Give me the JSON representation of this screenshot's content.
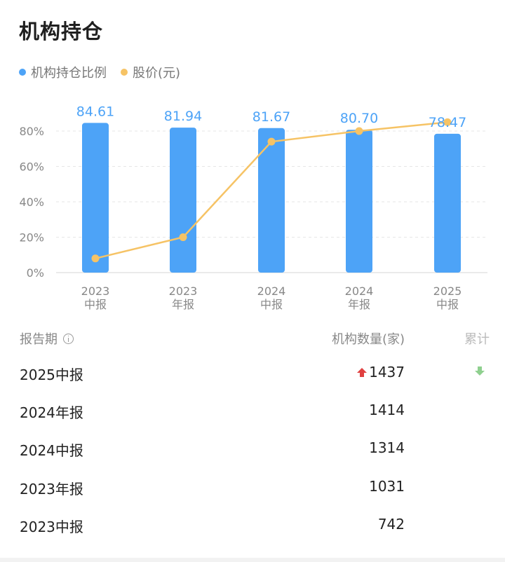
{
  "title": "机构持仓",
  "legend": [
    {
      "label": "机构持仓比例",
      "color": "#4da3f7"
    },
    {
      "label": "股价(元)",
      "color": "#f6c365"
    }
  ],
  "chart_data": {
    "type": "bar",
    "categories": [
      [
        "2023",
        "中报"
      ],
      [
        "2023",
        "年报"
      ],
      [
        "2024",
        "中报"
      ],
      [
        "2024",
        "年报"
      ],
      [
        "2025",
        "中报"
      ]
    ],
    "series": [
      {
        "name": "机构持仓比例",
        "type": "bar",
        "values": [
          84.61,
          81.94,
          81.67,
          80.7,
          78.47
        ],
        "labels": [
          "84.61",
          "81.94",
          "81.67",
          "80.70",
          "78.47"
        ],
        "color": "#4da3f7"
      },
      {
        "name": "股价(元)",
        "type": "line",
        "values": [
          8,
          20,
          74,
          80,
          85
        ],
        "color": "#f6c365"
      }
    ],
    "yticks": [
      "0%",
      "20%",
      "40%",
      "60%",
      "80%"
    ],
    "ylim": [
      0,
      80
    ],
    "grid": true
  },
  "table": {
    "headers": {
      "period": "报告期",
      "count": "机构数量(家)",
      "cumulative": "累计"
    },
    "rows": [
      {
        "period": "2025中报",
        "count": "1437",
        "up": true,
        "down": true
      },
      {
        "period": "2024年报",
        "count": "1414"
      },
      {
        "period": "2024中报",
        "count": "1314"
      },
      {
        "period": "2023年报",
        "count": "1031"
      },
      {
        "period": "2023中报",
        "count": "742"
      }
    ]
  }
}
